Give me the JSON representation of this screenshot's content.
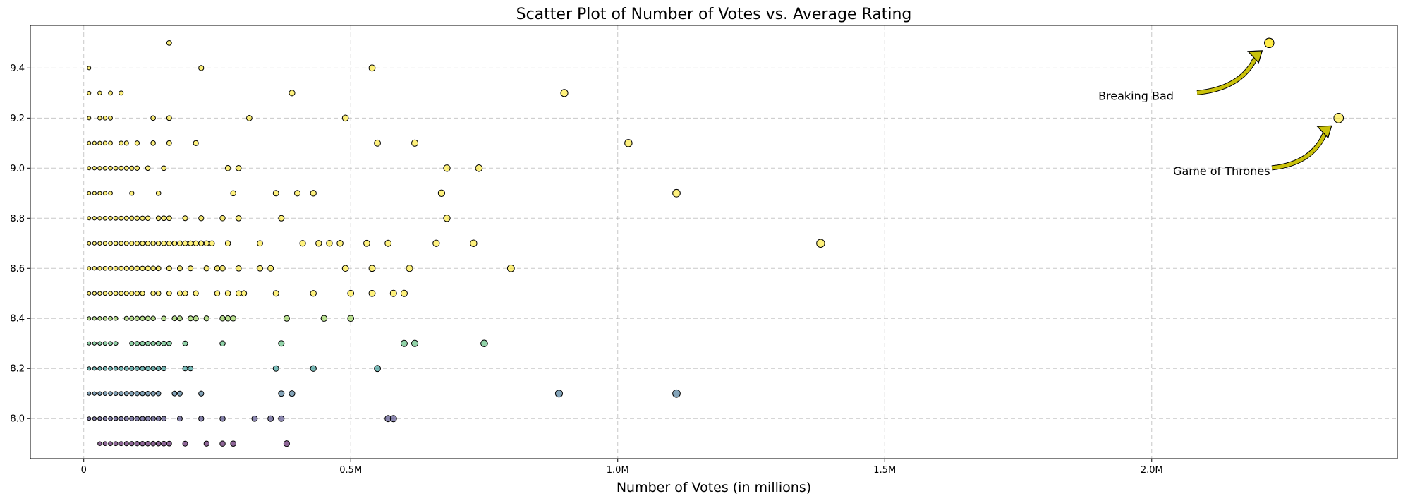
{
  "chart_data": {
    "type": "scatter",
    "title": "Scatter Plot of Number of Votes vs. Average Rating",
    "xlabel": "Number of Votes (in millions)",
    "ylabel": "",
    "xlim": [
      -0.1,
      2.46
    ],
    "ylim": [
      7.84,
      9.57
    ],
    "x_ticks": [
      {
        "value": 0,
        "label": "0"
      },
      {
        "value": 0.5,
        "label": "0.5M"
      },
      {
        "value": 1.0,
        "label": "1.0M"
      },
      {
        "value": 1.5,
        "label": "1.5M"
      },
      {
        "value": 2.0,
        "label": "2.0M"
      }
    ],
    "y_ticks": [
      {
        "value": 8.0,
        "label": "8.0"
      },
      {
        "value": 8.2,
        "label": "8.2"
      },
      {
        "value": 8.4,
        "label": "8.4"
      },
      {
        "value": 8.6,
        "label": "8.6"
      },
      {
        "value": 8.8,
        "label": "8.8"
      },
      {
        "value": 9.0,
        "label": "9.0"
      },
      {
        "value": 9.2,
        "label": "9.2"
      },
      {
        "value": 9.4,
        "label": "9.4"
      }
    ],
    "grid": true,
    "grid_style": "dashed",
    "marker_edge_color": "#000000",
    "marker_alpha": 0.6,
    "colormap": "viridis",
    "color_by": "rating",
    "size_by": "votes",
    "points": {
      "7.9": [
        0.03,
        0.04,
        0.05,
        0.06,
        0.07,
        0.08,
        0.09,
        0.1,
        0.11,
        0.12,
        0.13,
        0.14,
        0.15,
        0.16,
        0.19,
        0.23,
        0.26,
        0.28,
        0.38
      ],
      "8.0": [
        0.01,
        0.02,
        0.03,
        0.04,
        0.05,
        0.06,
        0.07,
        0.08,
        0.09,
        0.1,
        0.11,
        0.12,
        0.13,
        0.14,
        0.15,
        0.18,
        0.22,
        0.26,
        0.32,
        0.35,
        0.37,
        0.57,
        0.58
      ],
      "8.1": [
        0.01,
        0.02,
        0.03,
        0.04,
        0.05,
        0.06,
        0.07,
        0.08,
        0.09,
        0.1,
        0.11,
        0.12,
        0.13,
        0.14,
        0.17,
        0.18,
        0.22,
        0.37,
        0.39,
        0.89,
        1.11
      ],
      "8.2": [
        0.01,
        0.02,
        0.03,
        0.04,
        0.05,
        0.06,
        0.07,
        0.08,
        0.09,
        0.1,
        0.11,
        0.12,
        0.13,
        0.14,
        0.15,
        0.19,
        0.2,
        0.36,
        0.43,
        0.55
      ],
      "8.3": [
        0.01,
        0.02,
        0.03,
        0.04,
        0.05,
        0.06,
        0.09,
        0.1,
        0.11,
        0.12,
        0.13,
        0.14,
        0.15,
        0.16,
        0.19,
        0.26,
        0.37,
        0.6,
        0.62,
        0.75
      ],
      "8.4": [
        0.01,
        0.02,
        0.03,
        0.04,
        0.05,
        0.06,
        0.08,
        0.09,
        0.1,
        0.11,
        0.12,
        0.13,
        0.15,
        0.17,
        0.18,
        0.2,
        0.21,
        0.23,
        0.26,
        0.27,
        0.28,
        0.38,
        0.45,
        0.5
      ],
      "8.5": [
        0.01,
        0.02,
        0.03,
        0.04,
        0.05,
        0.06,
        0.07,
        0.08,
        0.09,
        0.1,
        0.11,
        0.13,
        0.14,
        0.16,
        0.18,
        0.19,
        0.21,
        0.25,
        0.27,
        0.29,
        0.3,
        0.36,
        0.43,
        0.5,
        0.54,
        0.58,
        0.6
      ],
      "8.6": [
        0.01,
        0.02,
        0.03,
        0.04,
        0.05,
        0.06,
        0.07,
        0.08,
        0.09,
        0.1,
        0.11,
        0.12,
        0.13,
        0.14,
        0.16,
        0.18,
        0.2,
        0.23,
        0.25,
        0.26,
        0.29,
        0.33,
        0.35,
        0.49,
        0.54,
        0.61,
        0.8
      ],
      "8.7": [
        0.01,
        0.02,
        0.03,
        0.04,
        0.05,
        0.06,
        0.07,
        0.08,
        0.09,
        0.1,
        0.11,
        0.12,
        0.13,
        0.14,
        0.15,
        0.16,
        0.17,
        0.18,
        0.19,
        0.2,
        0.21,
        0.22,
        0.23,
        0.24,
        0.27,
        0.33,
        0.41,
        0.44,
        0.46,
        0.48,
        0.53,
        0.57,
        0.66,
        0.73,
        1.38
      ],
      "8.8": [
        0.01,
        0.02,
        0.03,
        0.04,
        0.05,
        0.06,
        0.07,
        0.08,
        0.09,
        0.1,
        0.11,
        0.12,
        0.14,
        0.15,
        0.16,
        0.19,
        0.22,
        0.26,
        0.29,
        0.37,
        0.68
      ],
      "8.9": [
        0.01,
        0.02,
        0.03,
        0.04,
        0.05,
        0.09,
        0.14,
        0.28,
        0.36,
        0.4,
        0.43,
        0.67,
        1.11
      ],
      "9.0": [
        0.01,
        0.02,
        0.03,
        0.04,
        0.05,
        0.06,
        0.07,
        0.08,
        0.09,
        0.1,
        0.12,
        0.15,
        0.27,
        0.29,
        0.68,
        0.74
      ],
      "9.1": [
        0.01,
        0.02,
        0.03,
        0.04,
        0.05,
        0.07,
        0.08,
        0.1,
        0.13,
        0.16,
        0.21,
        0.55,
        0.62,
        1.02
      ],
      "9.2": [
        0.01,
        0.03,
        0.04,
        0.05,
        0.13,
        0.16,
        0.31,
        0.49
      ],
      "9.3": [
        0.01,
        0.03,
        0.05,
        0.07,
        0.39,
        0.9
      ],
      "9.4": [
        0.01,
        0.22,
        0.54
      ],
      "9.5": [
        0.16,
        2.22
      ]
    },
    "highlighted": [
      {
        "name": "Game of Thrones",
        "x": 2.35,
        "y": 9.2
      },
      {
        "name": "Breaking Bad",
        "x": 2.22,
        "y": 9.5
      }
    ],
    "annotations": [
      {
        "text": "Breaking Bad",
        "x": 1.9,
        "y": 9.29,
        "arrow_to_x": 2.22,
        "arrow_to_y": 9.5,
        "arrow_color": "#c9c10a"
      },
      {
        "text": "Game of Thrones",
        "x": 2.04,
        "y": 8.99,
        "arrow_to_x": 2.35,
        "arrow_to_y": 9.2,
        "arrow_color": "#c9c10a"
      }
    ]
  }
}
